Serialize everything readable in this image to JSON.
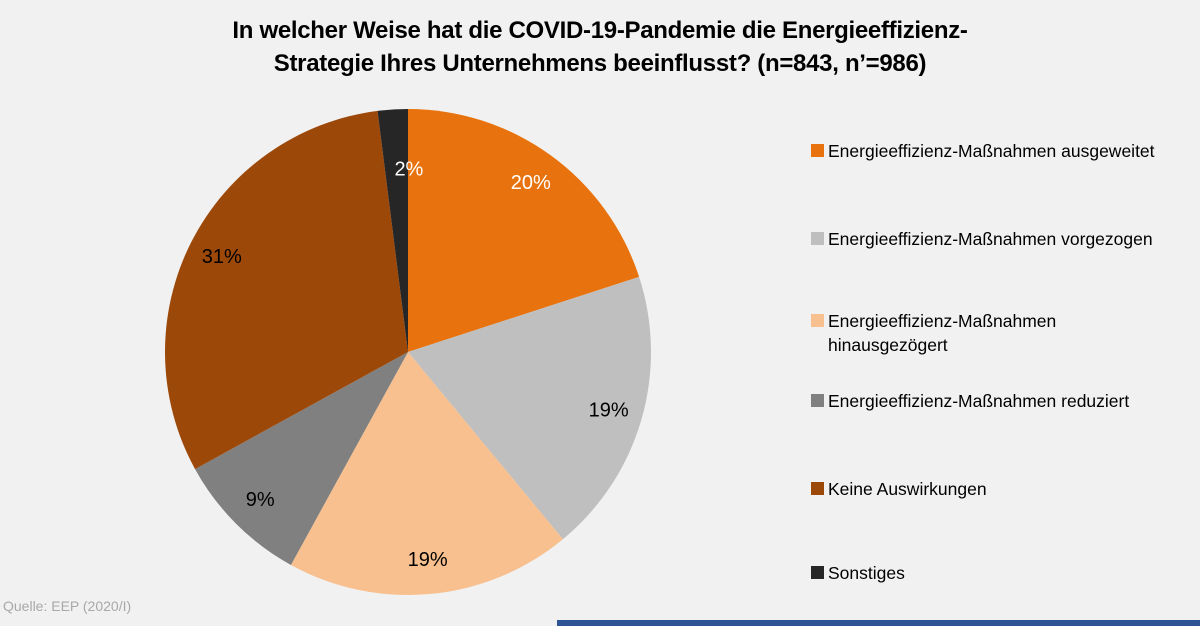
{
  "title": {
    "line1": "In welcher Weise hat die COVID-19-Pandemie die Energieeffizienz-",
    "line2": "Strategie Ihres Unternehmens beeinflusst? (n=843, n’=986)"
  },
  "source": "Quelle: EEP (2020/I)",
  "colors": {
    "background": "#F1F1F1",
    "footer_bar": "#2F5496",
    "source_text": "#A8A8A8"
  },
  "chart_data": {
    "type": "pie",
    "title": "In welcher Weise hat die COVID-19-Pandemie die Energieeffizienz-Strategie Ihres Unternehmens beeinflusst? (n=843, n’=986)",
    "data_labels": "percent",
    "legend_position": "right",
    "start_angle_deg": 0,
    "direction": "clockwise",
    "slices": [
      {
        "label": "Energieeffizienz-Maßnahmen ausgeweitet",
        "value": 20,
        "color": "#E8730E",
        "label_color": "#FFFFFF"
      },
      {
        "label": "Energieeffizienz-Maßnahmen vorgezogen",
        "value": 19,
        "color": "#BFBFBF",
        "label_color": "#000000"
      },
      {
        "label": "Energieeffizienz-Maßnahmen hinausgezögert",
        "value": 19,
        "color": "#F8C08E",
        "label_color": "#000000"
      },
      {
        "label": "Energieeffizienz-Maßnahmen reduziert",
        "value": 9,
        "color": "#808080",
        "label_color": "#000000"
      },
      {
        "label": "Keine Auswirkungen",
        "value": 31,
        "color": "#9C4808",
        "label_color": "#000000"
      },
      {
        "label": "Sonstiges",
        "value": 2,
        "color": "#262626",
        "label_color": "#FFFFFF"
      }
    ]
  },
  "legend": {
    "items": [
      {
        "label": "Energieeffizienz-Maßnahmen ausgeweitet"
      },
      {
        "label": "Energieeffizienz-Maßnahmen vorgezogen"
      },
      {
        "label": "Energieeffizienz-Maßnahmen",
        "label2": "hinausgezögert"
      },
      {
        "label": "Energieeffizienz-Maßnahmen reduziert"
      },
      {
        "label": "Keine Auswirkungen"
      },
      {
        "label": "Sonstiges"
      }
    ]
  }
}
